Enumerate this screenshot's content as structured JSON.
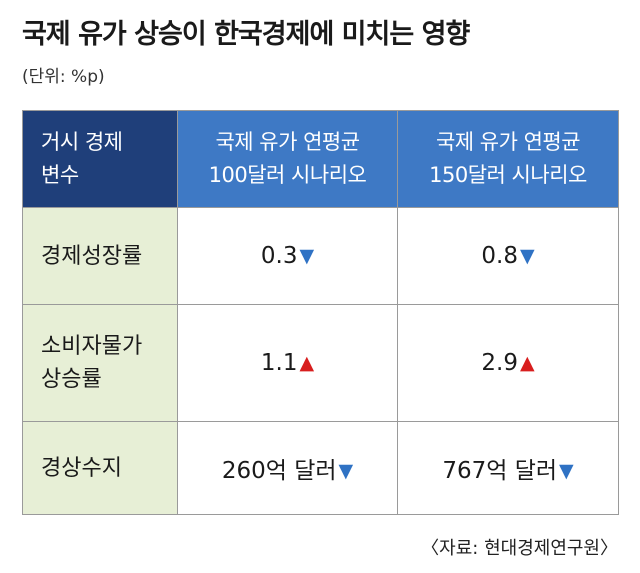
{
  "title": "국제 유가 상승이 한국경제에 미치는 영향",
  "unit": "(단위: %p)",
  "table": {
    "corner": [
      "거시 경제",
      "변수"
    ],
    "columns": [
      [
        "국제 유가 연평균",
        "100달러 시나리오"
      ],
      [
        "국제 유가 연평균",
        "150달러 시나리오"
      ]
    ],
    "rows": [
      {
        "label": [
          "경제성장률"
        ],
        "cells": [
          {
            "value": "0.3",
            "direction": "down",
            "arrow": "▼"
          },
          {
            "value": "0.8",
            "direction": "down",
            "arrow": "▼"
          }
        ]
      },
      {
        "label": [
          "소비자물가",
          "상승률"
        ],
        "cells": [
          {
            "value": "1.1",
            "direction": "up",
            "arrow": "▲"
          },
          {
            "value": "2.9",
            "direction": "up",
            "arrow": "▲"
          }
        ]
      },
      {
        "label": [
          "경상수지"
        ],
        "cells": [
          {
            "value": "260억 달러",
            "direction": "down",
            "arrow": "▼"
          },
          {
            "value": "767억 달러",
            "direction": "down",
            "arrow": "▼"
          }
        ]
      }
    ]
  },
  "source": "〈자료: 현대경제연구원〉",
  "colors": {
    "corner_header": "#1f3f7a",
    "scenario_header": "#3e79c5",
    "row_header": "#e7efd6",
    "arrow_down": "#2f72c4",
    "arrow_up": "#d81e1e"
  }
}
